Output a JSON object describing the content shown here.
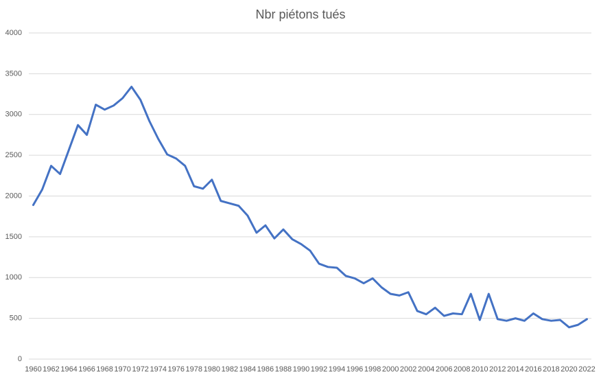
{
  "chart_data": {
    "type": "line",
    "title": "Nbr piétons tués",
    "categories": [
      "1960",
      null,
      "1962",
      null,
      "1964",
      null,
      "1966",
      null,
      "1968",
      null,
      "1970",
      null,
      "1972",
      null,
      "1974",
      null,
      "1976",
      null,
      "1978",
      null,
      "1980",
      null,
      "1982",
      null,
      "1984",
      null,
      "1986",
      null,
      "1988",
      null,
      "1990",
      null,
      "1992",
      null,
      "1994",
      null,
      "1996",
      null,
      "1998",
      null,
      "2000",
      null,
      "2002",
      null,
      "2004",
      null,
      "2006",
      null,
      "2008",
      null,
      "2010",
      null,
      "2012",
      null,
      "2014",
      null,
      "2016",
      null,
      "2018",
      null,
      "2020",
      null,
      "2022"
    ],
    "values": [
      1890,
      2080,
      2370,
      2270,
      2570,
      2870,
      2750,
      3120,
      3060,
      3110,
      3200,
      3340,
      3180,
      2920,
      2700,
      2510,
      2460,
      2370,
      2120,
      2090,
      2200,
      1940,
      1910,
      1880,
      1760,
      1550,
      1640,
      1480,
      1590,
      1470,
      1410,
      1330,
      1170,
      1130,
      1120,
      1020,
      990,
      930,
      990,
      880,
      800,
      780,
      820,
      590,
      550,
      630,
      530,
      560,
      550,
      800,
      480,
      800,
      490,
      470,
      500,
      470,
      560,
      490,
      470,
      480,
      390,
      420,
      490
    ],
    "color": "#4472c4",
    "ylim": [
      0,
      4000
    ],
    "yticks": [
      0,
      500,
      1000,
      1500,
      2000,
      2500,
      3000,
      3500,
      4000
    ],
    "grid": true
  }
}
